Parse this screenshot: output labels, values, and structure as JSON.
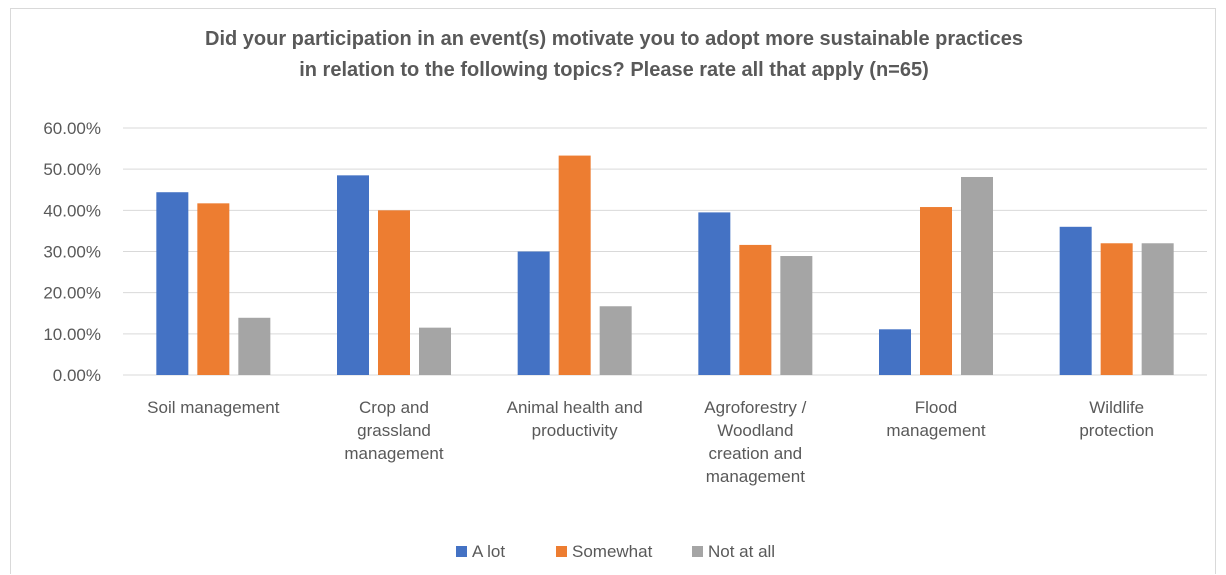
{
  "header": {
    "cutoff_heading": ""
  },
  "colors": {
    "a_lot": "#4472c4",
    "somewhat": "#ed7d31",
    "not_at_all": "#a5a5a5",
    "grid": "#d9d9d9",
    "text": "#595959"
  },
  "chart_data": {
    "type": "bar",
    "title_lines": [
      "Did your participation in an event(s) motivate you to adopt more sustainable practices",
      "in relation to the following topics? Please rate all that apply (n=65)"
    ],
    "categories": [
      [
        "Soil management"
      ],
      [
        "Crop and",
        "grassland",
        "management"
      ],
      [
        "Animal health and",
        "productivity"
      ],
      [
        "Agroforestry /",
        "Woodland",
        "creation and",
        "management"
      ],
      [
        "Flood",
        "management"
      ],
      [
        "Wildlife",
        "protection"
      ]
    ],
    "series": [
      {
        "name": "A lot",
        "values": [
          44.4,
          48.5,
          30.0,
          39.5,
          11.1,
          36.0
        ]
      },
      {
        "name": "Somewhat",
        "values": [
          41.7,
          40.0,
          53.3,
          31.6,
          40.8,
          32.0
        ]
      },
      {
        "name": "Not at all",
        "values": [
          13.9,
          11.5,
          16.7,
          28.9,
          48.1,
          32.0
        ]
      }
    ],
    "y_ticks": [
      "0.00%",
      "10.00%",
      "20.00%",
      "30.00%",
      "40.00%",
      "50.00%",
      "60.00%"
    ],
    "ylim": [
      0,
      60
    ],
    "grid": true,
    "legend_position": "bottom"
  }
}
